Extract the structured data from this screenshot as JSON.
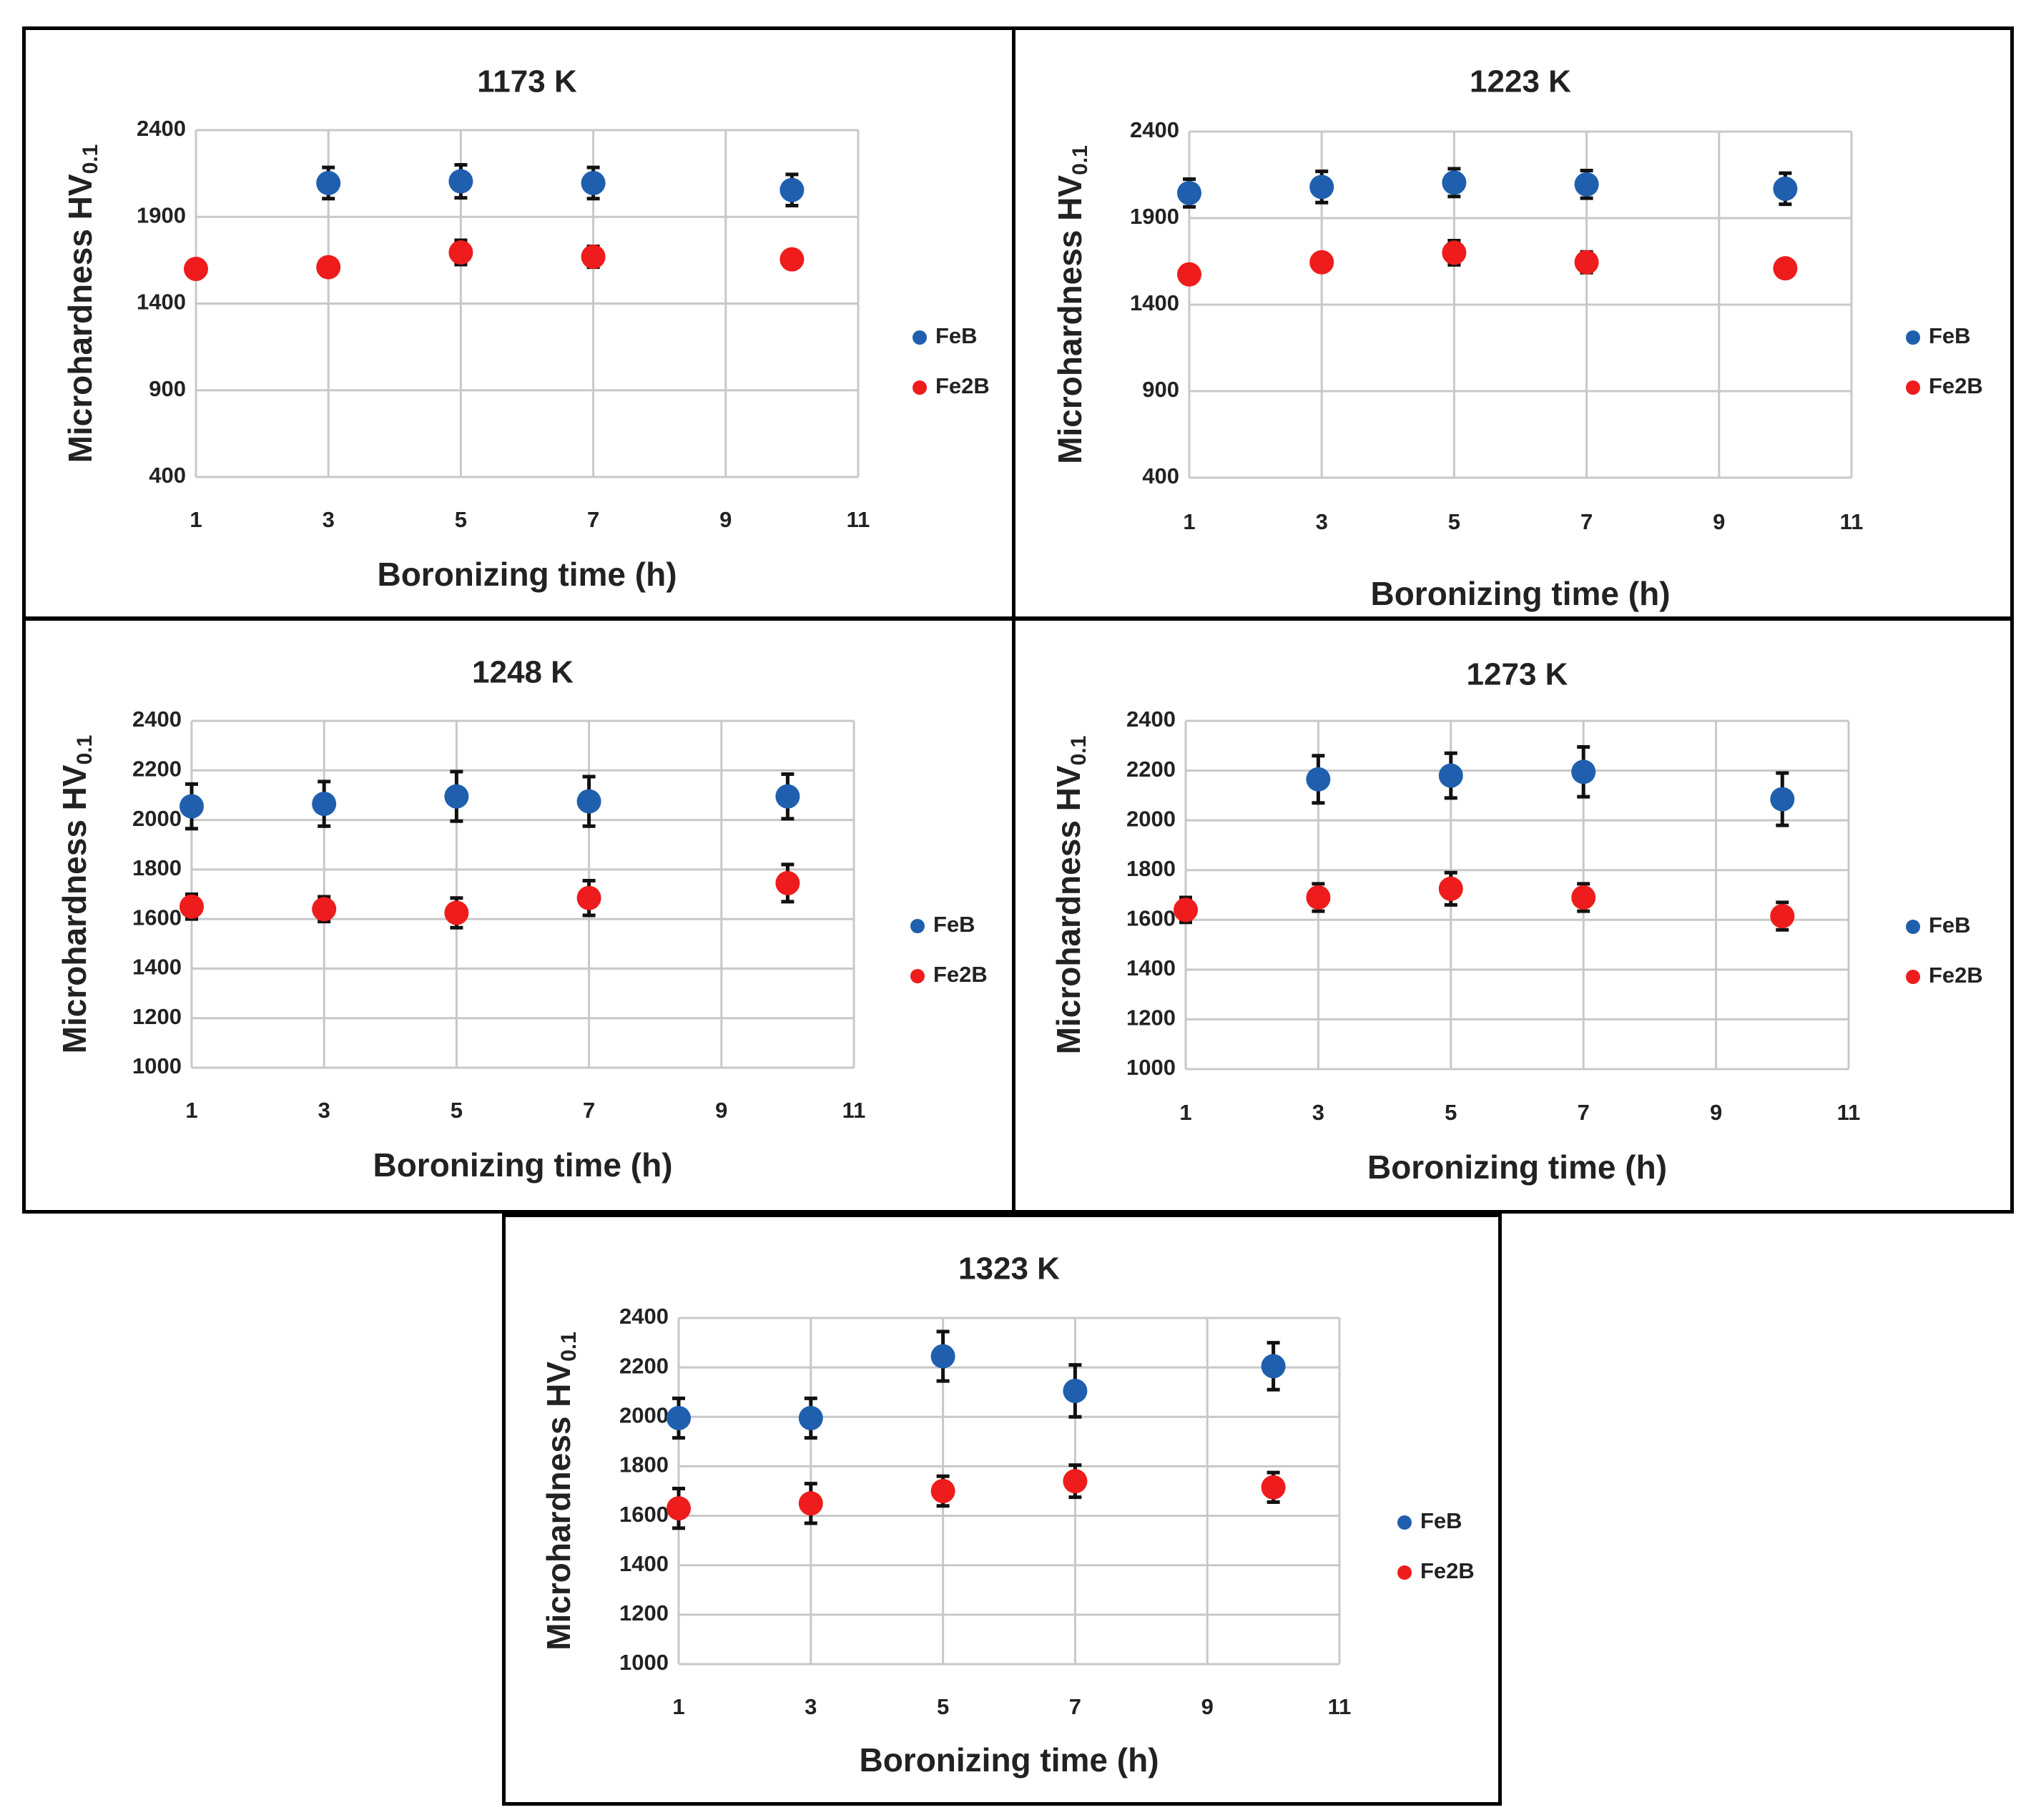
{
  "colors": {
    "FeB": "#1f5fae",
    "Fe2B": "#ee1c1c",
    "grid": "#c8c8c8"
  },
  "chart_data": [
    {
      "type": "scatter",
      "title": "1173 K",
      "xlabel": "Boronizing time (h)",
      "ylabel_main": "Microhardness HV",
      "ylabel_sub": "0.1",
      "xlim": [
        1,
        11
      ],
      "ylim": [
        400,
        2400
      ],
      "xticks": [
        1,
        3,
        5,
        7,
        9,
        11
      ],
      "yticks": [
        400,
        900,
        1400,
        1900,
        2400
      ],
      "series": [
        {
          "name": "FeB",
          "color": "#1f5fae",
          "x": [
            3,
            5,
            7,
            10
          ],
          "y": [
            2095,
            2105,
            2095,
            2055
          ],
          "err": [
            90,
            95,
            90,
            90
          ]
        },
        {
          "name": "Fe2B",
          "color": "#ee1c1c",
          "x": [
            1,
            3,
            5,
            7,
            10
          ],
          "y": [
            1600,
            1610,
            1695,
            1670,
            1655
          ],
          "err": [
            35,
            50,
            70,
            60,
            50
          ]
        }
      ]
    },
    {
      "type": "scatter",
      "title": "1223 K",
      "xlabel": "Boronizing time (h)",
      "ylabel_main": "Microhardness HV",
      "ylabel_sub": "0.1",
      "xlim": [
        1,
        11
      ],
      "ylim": [
        400,
        2400
      ],
      "xticks": [
        1,
        3,
        5,
        7,
        9,
        11
      ],
      "yticks": [
        400,
        900,
        1400,
        1900,
        2400
      ],
      "series": [
        {
          "name": "FeB",
          "color": "#1f5fae",
          "x": [
            1,
            3,
            5,
            7,
            10
          ],
          "y": [
            2045,
            2080,
            2105,
            2095,
            2070
          ],
          "err": [
            80,
            90,
            80,
            80,
            90
          ]
        },
        {
          "name": "Fe2B",
          "color": "#ee1c1c",
          "x": [
            1,
            3,
            5,
            7,
            10
          ],
          "y": [
            1575,
            1645,
            1700,
            1645,
            1610
          ],
          "err": [
            50,
            40,
            70,
            60,
            50
          ]
        }
      ]
    },
    {
      "type": "scatter",
      "title": "1248 K",
      "xlabel": "Boronizing time (h)",
      "ylabel_main": "Microhardness HV",
      "ylabel_sub": "0.1",
      "xlim": [
        1,
        11
      ],
      "ylim": [
        1000,
        2400
      ],
      "xticks": [
        1,
        3,
        5,
        7,
        9,
        11
      ],
      "yticks": [
        1000,
        1200,
        1400,
        1600,
        1800,
        2000,
        2200,
        2400
      ],
      "series": [
        {
          "name": "FeB",
          "color": "#1f5fae",
          "x": [
            1,
            3,
            5,
            7,
            10
          ],
          "y": [
            2055,
            2065,
            2095,
            2075,
            2095
          ],
          "err": [
            90,
            90,
            100,
            100,
            90
          ]
        },
        {
          "name": "Fe2B",
          "color": "#ee1c1c",
          "x": [
            1,
            3,
            5,
            7,
            10
          ],
          "y": [
            1650,
            1640,
            1625,
            1685,
            1745
          ],
          "err": [
            50,
            50,
            60,
            70,
            75
          ]
        }
      ]
    },
    {
      "type": "scatter",
      "title": "1273 K",
      "xlabel": "Boronizing time (h)",
      "ylabel_main": "Microhardness HV",
      "ylabel_sub": "0.1",
      "xlim": [
        1,
        11
      ],
      "ylim": [
        1000,
        2400
      ],
      "xticks": [
        1,
        3,
        5,
        7,
        9,
        11
      ],
      "yticks": [
        1000,
        1200,
        1400,
        1600,
        1800,
        2000,
        2200,
        2400
      ],
      "series": [
        {
          "name": "FeB",
          "color": "#1f5fae",
          "x": [
            3,
            5,
            7,
            10
          ],
          "y": [
            2165,
            2180,
            2195,
            2085
          ],
          "err": [
            95,
            90,
            100,
            105
          ]
        },
        {
          "name": "Fe2B",
          "color": "#ee1c1c",
          "x": [
            1,
            3,
            5,
            7,
            10
          ],
          "y": [
            1640,
            1690,
            1725,
            1690,
            1615
          ],
          "err": [
            50,
            55,
            65,
            55,
            55
          ]
        }
      ]
    },
    {
      "type": "scatter",
      "title": "1323 K",
      "xlabel": "Boronizing time (h)",
      "ylabel_main": "Microhardness HV",
      "ylabel_sub": "0.1",
      "xlim": [
        1,
        11
      ],
      "ylim": [
        1000,
        2400
      ],
      "xticks": [
        1,
        3,
        5,
        7,
        9,
        11
      ],
      "yticks": [
        1000,
        1200,
        1400,
        1600,
        1800,
        2000,
        2200,
        2400
      ],
      "series": [
        {
          "name": "FeB",
          "color": "#1f5fae",
          "x": [
            1,
            3,
            5,
            7,
            10
          ],
          "y": [
            1995,
            1995,
            2245,
            2105,
            2205
          ],
          "err": [
            80,
            80,
            100,
            105,
            95
          ]
        },
        {
          "name": "Fe2B",
          "color": "#ee1c1c",
          "x": [
            1,
            3,
            5,
            7,
            10
          ],
          "y": [
            1630,
            1650,
            1700,
            1740,
            1715
          ],
          "err": [
            80,
            80,
            60,
            65,
            60
          ]
        }
      ]
    }
  ]
}
